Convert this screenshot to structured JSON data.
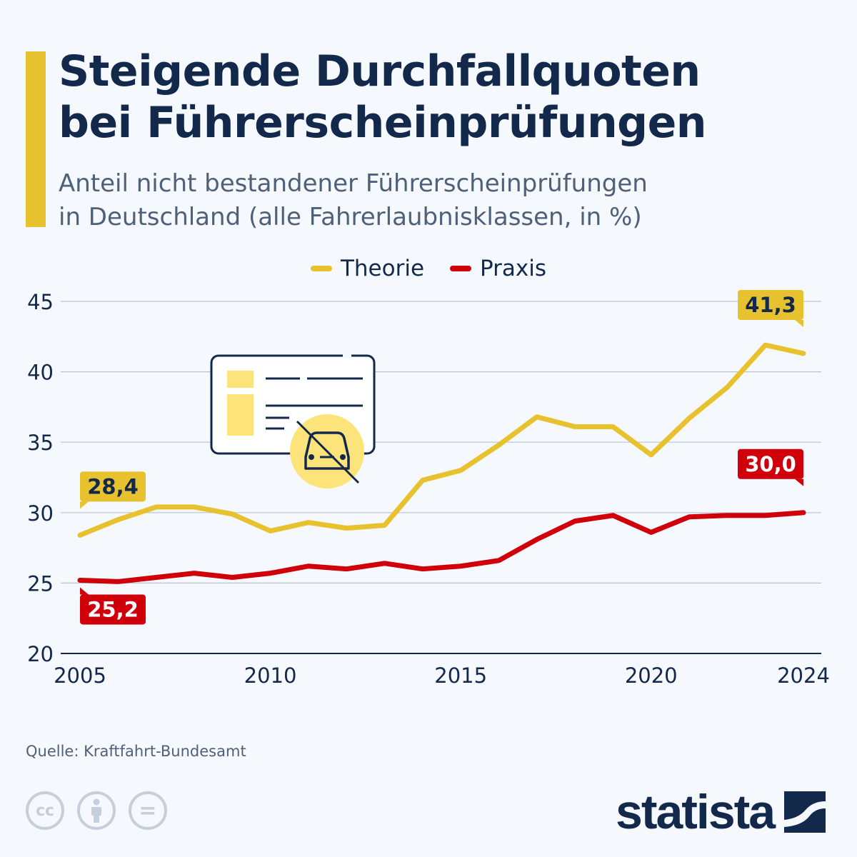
{
  "header": {
    "title_line1": "Steigende Durchfallquoten",
    "title_line2": "bei Führerscheinprüfungen",
    "subtitle_line1": "Anteil nicht bestandener Führerscheinprüfungen",
    "subtitle_line2": "in Deutschland (alle Fahrerlaubnisklassen, in %)"
  },
  "colors": {
    "theorie": "#e8c22e",
    "praxis": "#d0000b",
    "text": "#13294b",
    "grid": "#b8c3d2",
    "accent": "#e8c22e"
  },
  "chart_data": {
    "type": "line",
    "title": "Steigende Durchfallquoten bei Führerscheinprüfungen",
    "subtitle": "Anteil nicht bestandener Führerscheinprüfungen in Deutschland (alle Fahrerlaubnisklassen, in %)",
    "x": [
      2005,
      2006,
      2007,
      2008,
      2009,
      2010,
      2011,
      2012,
      2013,
      2014,
      2015,
      2016,
      2017,
      2018,
      2019,
      2020,
      2021,
      2022,
      2023,
      2024
    ],
    "xticks": [
      "2005",
      "2010",
      "2015",
      "2020",
      "2024"
    ],
    "xlim": [
      2005,
      2024
    ],
    "ylim": [
      20,
      45
    ],
    "yticks": [
      "20",
      "25",
      "30",
      "35",
      "40",
      "45"
    ],
    "grid": true,
    "legend": "top-center",
    "series": [
      {
        "name": "Theorie",
        "values": [
          28.4,
          29.5,
          30.4,
          30.4,
          29.9,
          28.7,
          29.3,
          28.9,
          29.1,
          32.3,
          33.0,
          34.8,
          36.8,
          36.1,
          36.1,
          34.1,
          36.7,
          38.9,
          41.9,
          41.3
        ]
      },
      {
        "name": "Praxis",
        "values": [
          25.2,
          25.1,
          25.4,
          25.7,
          25.4,
          25.7,
          26.2,
          26.0,
          26.4,
          26.0,
          26.2,
          26.6,
          28.1,
          29.4,
          29.8,
          28.6,
          29.7,
          29.8,
          29.8,
          30.0
        ]
      }
    ],
    "annotations": [
      {
        "series": "Theorie",
        "x": 2005,
        "label": "28,4"
      },
      {
        "series": "Praxis",
        "x": 2005,
        "label": "25,2"
      },
      {
        "series": "Theorie",
        "x": 2024,
        "label": "41,3"
      },
      {
        "series": "Praxis",
        "x": 2024,
        "label": "30,0"
      }
    ]
  },
  "footer": {
    "source": "Quelle: Kraftfahrt-Bundesamt",
    "license_icons": [
      "cc-icon",
      "attribution-icon",
      "no-derivatives-icon"
    ],
    "cc_label": "cc",
    "eq_label": "=",
    "brand": "statista"
  }
}
